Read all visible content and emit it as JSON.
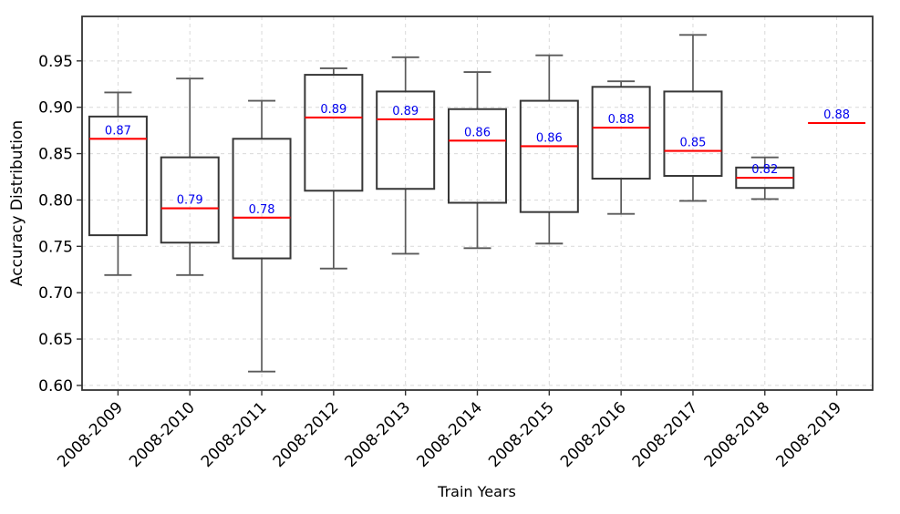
{
  "chart_data": {
    "type": "boxplot",
    "title": "",
    "xlabel": "Train Years",
    "ylabel": "Accuracy Distribution",
    "categories": [
      "2008-2009",
      "2008-2010",
      "2008-2011",
      "2008-2012",
      "2008-2013",
      "2008-2014",
      "2008-2015",
      "2008-2016",
      "2008-2017",
      "2008-2018",
      "2008-2019"
    ],
    "yticks": [
      0.6,
      0.65,
      0.7,
      0.75,
      0.8,
      0.85,
      0.9,
      0.95
    ],
    "ytick_labels": [
      "0.60",
      "0.65",
      "0.70",
      "0.75",
      "0.80",
      "0.85",
      "0.90",
      "0.95"
    ],
    "ylim": [
      0.595,
      0.998
    ],
    "grid": true,
    "grid_style": "dashed",
    "boxes": [
      {
        "label": "2008-2009",
        "whisker_low": 0.719,
        "q1": 0.762,
        "median": 0.866,
        "q3": 0.89,
        "whisker_high": 0.916,
        "median_label": "0.87",
        "degenerate": false
      },
      {
        "label": "2008-2010",
        "whisker_low": 0.719,
        "q1": 0.754,
        "median": 0.791,
        "q3": 0.846,
        "whisker_high": 0.931,
        "median_label": "0.79",
        "degenerate": false
      },
      {
        "label": "2008-2011",
        "whisker_low": 0.615,
        "q1": 0.737,
        "median": 0.781,
        "q3": 0.866,
        "whisker_high": 0.907,
        "median_label": "0.78",
        "degenerate": false
      },
      {
        "label": "2008-2012",
        "whisker_low": 0.726,
        "q1": 0.81,
        "median": 0.889,
        "q3": 0.935,
        "whisker_high": 0.942,
        "median_label": "0.89",
        "degenerate": false
      },
      {
        "label": "2008-2013",
        "whisker_low": 0.742,
        "q1": 0.812,
        "median": 0.887,
        "q3": 0.917,
        "whisker_high": 0.954,
        "median_label": "0.89",
        "degenerate": false
      },
      {
        "label": "2008-2014",
        "whisker_low": 0.748,
        "q1": 0.797,
        "median": 0.864,
        "q3": 0.898,
        "whisker_high": 0.938,
        "median_label": "0.86",
        "degenerate": false
      },
      {
        "label": "2008-2015",
        "whisker_low": 0.753,
        "q1": 0.787,
        "median": 0.858,
        "q3": 0.907,
        "whisker_high": 0.956,
        "median_label": "0.86",
        "degenerate": false
      },
      {
        "label": "2008-2016",
        "whisker_low": 0.785,
        "q1": 0.823,
        "median": 0.878,
        "q3": 0.922,
        "whisker_high": 0.928,
        "median_label": "0.88",
        "degenerate": false
      },
      {
        "label": "2008-2017",
        "whisker_low": 0.799,
        "q1": 0.826,
        "median": 0.853,
        "q3": 0.917,
        "whisker_high": 0.978,
        "median_label": "0.85",
        "degenerate": false
      },
      {
        "label": "2008-2018",
        "whisker_low": 0.801,
        "q1": 0.813,
        "median": 0.824,
        "q3": 0.835,
        "whisker_high": 0.846,
        "median_label": "0.82",
        "degenerate": false
      },
      {
        "label": "2008-2019",
        "whisker_low": null,
        "q1": null,
        "median": 0.883,
        "q3": null,
        "whisker_high": null,
        "median_label": "0.88",
        "degenerate": true
      }
    ],
    "colors": {
      "median": "#ff0000",
      "median_label": "#0000ee",
      "box_edge": "#373737",
      "whisker": "#5a5a5a",
      "grid": "#d9d9d9",
      "axis": "#333333",
      "tick_text": "#000000"
    },
    "legend": null
  }
}
